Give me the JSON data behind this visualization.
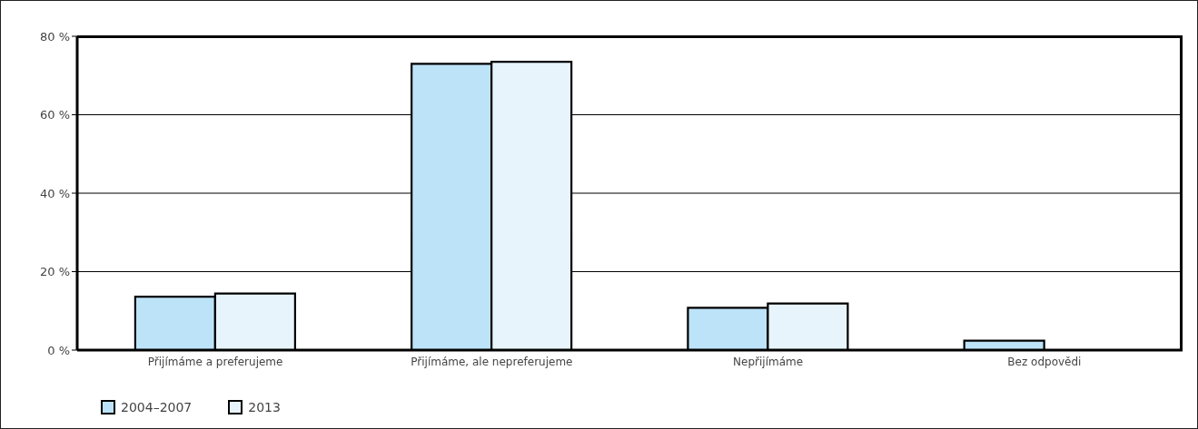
{
  "chart_data": {
    "type": "bar",
    "categories": [
      "Přijímáme a preferujeme",
      "Přijímáme, ale nepreferujeme",
      "Nepřijímáme",
      "Bez odpovědi"
    ],
    "series": [
      {
        "name": "2004–2007",
        "color": "#bde3f8",
        "values": [
          13.6,
          73.0,
          10.8,
          2.4
        ]
      },
      {
        "name": "2013",
        "color": "#e8f4fc",
        "values": [
          14.4,
          73.5,
          11.9,
          null
        ]
      }
    ],
    "ylim": [
      0,
      80
    ],
    "yticks": [
      {
        "value": 0,
        "label": "0 %"
      },
      {
        "value": 20,
        "label": "20 %"
      },
      {
        "value": 40,
        "label": "40 %"
      },
      {
        "value": 60,
        "label": "60 %"
      },
      {
        "value": 80,
        "label": "80 %"
      }
    ],
    "grid": "y",
    "legend": "bottom left"
  }
}
